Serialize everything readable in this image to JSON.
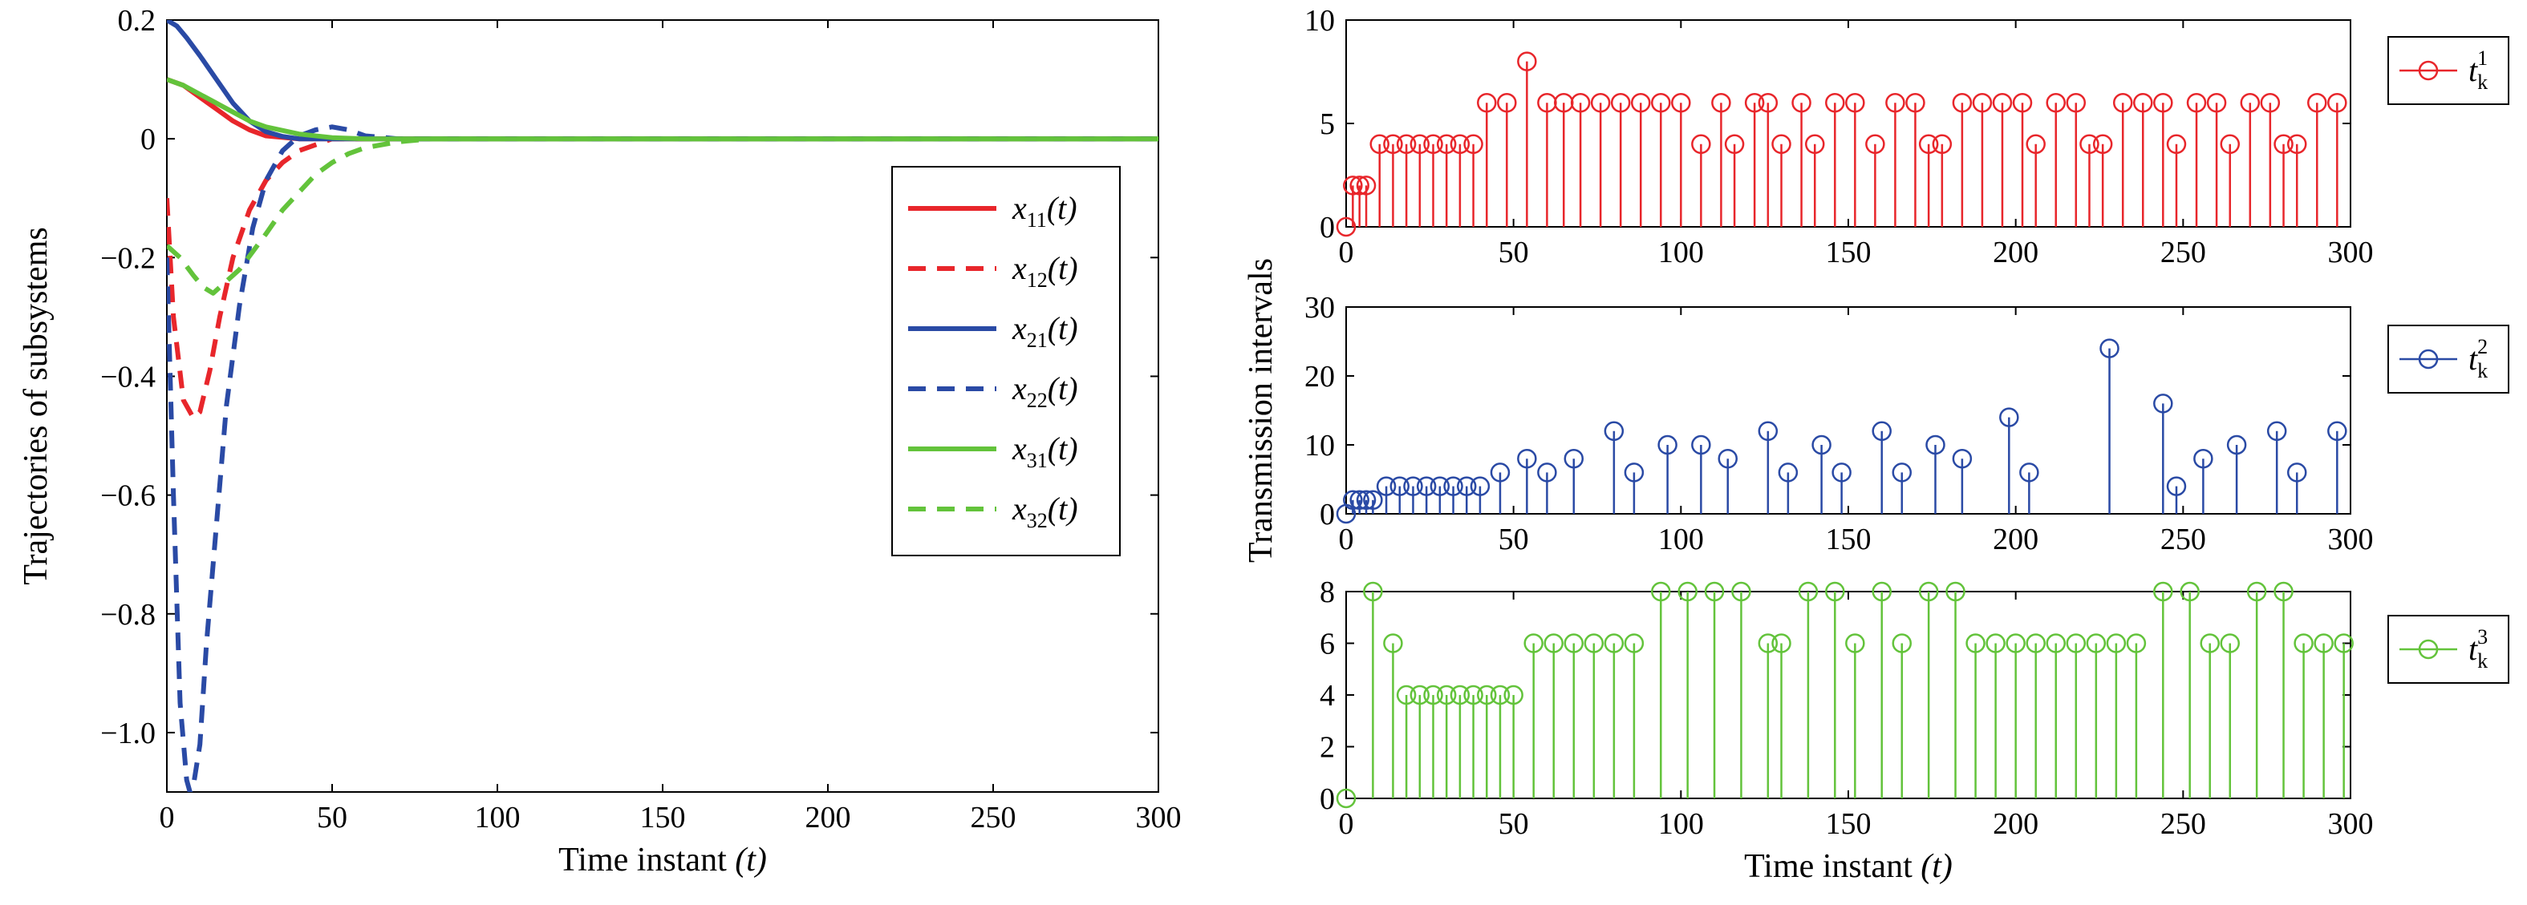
{
  "chart_data": [
    {
      "type": "line",
      "xlabel_text": "Time instant ",
      "xlabel_var": "(t)",
      "ylabel": "Trajectories of subsystems",
      "xlim": [
        0,
        300
      ],
      "ylim": [
        -1.1,
        0.2
      ],
      "xticks": [
        "0",
        "50",
        "100",
        "150",
        "200",
        "250",
        "300"
      ],
      "xtick_values": [
        0,
        50,
        100,
        150,
        200,
        250,
        300
      ],
      "yticks": [
        "0.2",
        "0",
        "−0.2",
        "−0.4",
        "−0.6",
        "−0.8",
        "−1.0"
      ],
      "ytick_values": [
        0.2,
        0,
        -0.2,
        -0.4,
        -0.6,
        -0.8,
        -1.0
      ],
      "legend_position": "right",
      "series": [
        {
          "name": "x11(t)",
          "label_main": "x",
          "label_sub": "11",
          "label_tail": "(t)",
          "color": "#e8262b",
          "dash": "solid",
          "x": [
            0,
            5,
            10,
            15,
            20,
            25,
            30,
            40,
            50,
            60,
            80,
            100,
            300
          ],
          "y": [
            0.1,
            0.09,
            0.07,
            0.05,
            0.03,
            0.015,
            0.005,
            0,
            0,
            0,
            0,
            0,
            0
          ]
        },
        {
          "name": "x12(t)",
          "label_main": "x",
          "label_sub": "12",
          "label_tail": "(t)",
          "color": "#e8262b",
          "dash": "dashed",
          "x": [
            0,
            2,
            5,
            8,
            10,
            13,
            16,
            20,
            25,
            30,
            35,
            40,
            50,
            60,
            70,
            80,
            100,
            300
          ],
          "y": [
            -0.1,
            -0.3,
            -0.44,
            -0.47,
            -0.46,
            -0.39,
            -0.3,
            -0.2,
            -0.12,
            -0.07,
            -0.04,
            -0.02,
            0,
            0,
            0,
            0,
            0,
            0
          ]
        },
        {
          "name": "x21(t)",
          "label_main": "x",
          "label_sub": "21",
          "label_tail": "(t)",
          "color": "#2a4aa5",
          "dash": "solid",
          "x": [
            0,
            3,
            6,
            10,
            15,
            20,
            25,
            30,
            35,
            40,
            50,
            60,
            80,
            100,
            300
          ],
          "y": [
            0.2,
            0.19,
            0.17,
            0.14,
            0.1,
            0.06,
            0.03,
            0.012,
            0.004,
            0,
            0,
            0,
            0,
            0,
            0
          ]
        },
        {
          "name": "x22(t)",
          "label_main": "x",
          "label_sub": "22",
          "label_tail": "(t)",
          "color": "#2a4aa5",
          "dash": "dashed",
          "x": [
            0,
            2,
            4,
            6,
            7,
            8,
            10,
            12,
            15,
            18,
            22,
            26,
            30,
            35,
            40,
            45,
            50,
            55,
            60,
            70,
            80,
            100,
            300
          ],
          "y": [
            -0.2,
            -0.6,
            -0.95,
            -1.08,
            -1.1,
            -1.09,
            -1.02,
            -0.85,
            -0.65,
            -0.45,
            -0.28,
            -0.15,
            -0.07,
            -0.02,
            0.005,
            0.015,
            0.02,
            0.015,
            0.005,
            0,
            0,
            0,
            0
          ]
        },
        {
          "name": "x31(t)",
          "label_main": "x",
          "label_sub": "31",
          "label_tail": "(t)",
          "color": "#63c33b",
          "dash": "solid",
          "x": [
            0,
            5,
            10,
            15,
            20,
            25,
            30,
            40,
            50,
            60,
            80,
            100,
            300
          ],
          "y": [
            0.1,
            0.09,
            0.075,
            0.06,
            0.045,
            0.03,
            0.02,
            0.008,
            0.002,
            0,
            0,
            0,
            0
          ]
        },
        {
          "name": "x32(t)",
          "label_main": "x",
          "label_sub": "32",
          "label_tail": "(t)",
          "color": "#63c33b",
          "dash": "dashed",
          "x": [
            0,
            4,
            8,
            11,
            14,
            18,
            22,
            26,
            30,
            35,
            40,
            45,
            50,
            55,
            60,
            70,
            80,
            90,
            100,
            300
          ],
          "y": [
            -0.18,
            -0.2,
            -0.23,
            -0.25,
            -0.26,
            -0.24,
            -0.22,
            -0.19,
            -0.16,
            -0.12,
            -0.09,
            -0.06,
            -0.04,
            -0.025,
            -0.015,
            -0.005,
            0,
            0,
            0,
            0
          ]
        }
      ]
    },
    {
      "type": "stem",
      "ylabel": "Transmission intervals",
      "xlim": [
        0,
        300
      ],
      "ylim": [
        0,
        10
      ],
      "xticks": [
        "0",
        "50",
        "100",
        "150",
        "200",
        "250",
        "300"
      ],
      "xtick_values": [
        0,
        50,
        100,
        150,
        200,
        250,
        300
      ],
      "yticks": [
        "10",
        "5",
        "0"
      ],
      "ytick_values": [
        10,
        5,
        0
      ],
      "legend": {
        "main": "t",
        "sup": "1",
        "sub": "k"
      },
      "color": "#e8262b",
      "x": [
        0,
        2,
        4,
        6,
        10,
        14,
        18,
        22,
        26,
        30,
        34,
        38,
        42,
        48,
        54,
        60,
        65,
        70,
        76,
        82,
        88,
        94,
        100,
        106,
        112,
        116,
        122,
        126,
        130,
        136,
        140,
        146,
        152,
        158,
        164,
        170,
        174,
        178,
        184,
        190,
        196,
        202,
        206,
        212,
        218,
        222,
        226,
        232,
        238,
        244,
        248,
        254,
        260,
        264,
        270,
        276,
        280,
        284,
        290,
        296
      ],
      "y": [
        0,
        2,
        2,
        2,
        4,
        4,
        4,
        4,
        4,
        4,
        4,
        4,
        6,
        6,
        8,
        6,
        6,
        6,
        6,
        6,
        6,
        6,
        6,
        4,
        6,
        4,
        6,
        6,
        4,
        6,
        4,
        6,
        6,
        4,
        6,
        6,
        4,
        4,
        6,
        6,
        6,
        6,
        4,
        6,
        6,
        4,
        4,
        6,
        6,
        6,
        4,
        6,
        6,
        4,
        6,
        6,
        4,
        4,
        6,
        6
      ]
    },
    {
      "type": "stem",
      "ylabel": "",
      "xlim": [
        0,
        300
      ],
      "ylim": [
        0,
        30
      ],
      "xticks": [
        "0",
        "50",
        "100",
        "150",
        "200",
        "250",
        "300"
      ],
      "xtick_values": [
        0,
        50,
        100,
        150,
        200,
        250,
        300
      ],
      "yticks": [
        "30",
        "20",
        "10",
        "0"
      ],
      "ytick_values": [
        30,
        20,
        10,
        0
      ],
      "legend": {
        "main": "t",
        "sup": "2",
        "sub": "k"
      },
      "color": "#2a4aa5",
      "x": [
        0,
        2,
        4,
        6,
        8,
        12,
        16,
        20,
        24,
        28,
        32,
        36,
        40,
        46,
        54,
        60,
        68,
        80,
        86,
        96,
        106,
        114,
        126,
        132,
        142,
        148,
        160,
        166,
        176,
        184,
        198,
        204,
        228,
        244,
        248,
        256,
        266,
        278,
        284,
        296
      ],
      "y": [
        0,
        2,
        2,
        2,
        2,
        4,
        4,
        4,
        4,
        4,
        4,
        4,
        4,
        6,
        8,
        6,
        8,
        12,
        6,
        10,
        10,
        8,
        12,
        6,
        10,
        6,
        12,
        6,
        10,
        8,
        14,
        6,
        24,
        16,
        4,
        8,
        10,
        12,
        6,
        12
      ]
    },
    {
      "type": "stem",
      "ylabel": "",
      "xlabel_text": "Time instant ",
      "xlabel_var": "(t)",
      "xlim": [
        0,
        300
      ],
      "ylim": [
        0,
        8
      ],
      "xticks": [
        "0",
        "50",
        "100",
        "150",
        "200",
        "250",
        "300"
      ],
      "xtick_values": [
        0,
        50,
        100,
        150,
        200,
        250,
        300
      ],
      "yticks": [
        "8",
        "6",
        "4",
        "2",
        "0"
      ],
      "ytick_values": [
        8,
        6,
        4,
        2,
        0
      ],
      "legend": {
        "main": "t",
        "sup": "3",
        "sub": "k"
      },
      "color": "#63c33b",
      "x": [
        0,
        8,
        14,
        18,
        22,
        26,
        30,
        34,
        38,
        42,
        46,
        50,
        56,
        62,
        68,
        74,
        80,
        86,
        94,
        102,
        110,
        118,
        126,
        130,
        138,
        146,
        152,
        160,
        166,
        174,
        182,
        188,
        194,
        200,
        206,
        212,
        218,
        224,
        230,
        236,
        244,
        252,
        258,
        264,
        272,
        280,
        286,
        292,
        298
      ],
      "y": [
        0,
        8,
        6,
        4,
        4,
        4,
        4,
        4,
        4,
        4,
        4,
        4,
        6,
        6,
        6,
        6,
        6,
        6,
        8,
        8,
        8,
        8,
        6,
        6,
        8,
        8,
        6,
        8,
        6,
        8,
        8,
        6,
        6,
        6,
        6,
        6,
        6,
        6,
        6,
        6,
        8,
        8,
        6,
        6,
        8,
        8,
        6,
        6,
        6
      ]
    }
  ]
}
